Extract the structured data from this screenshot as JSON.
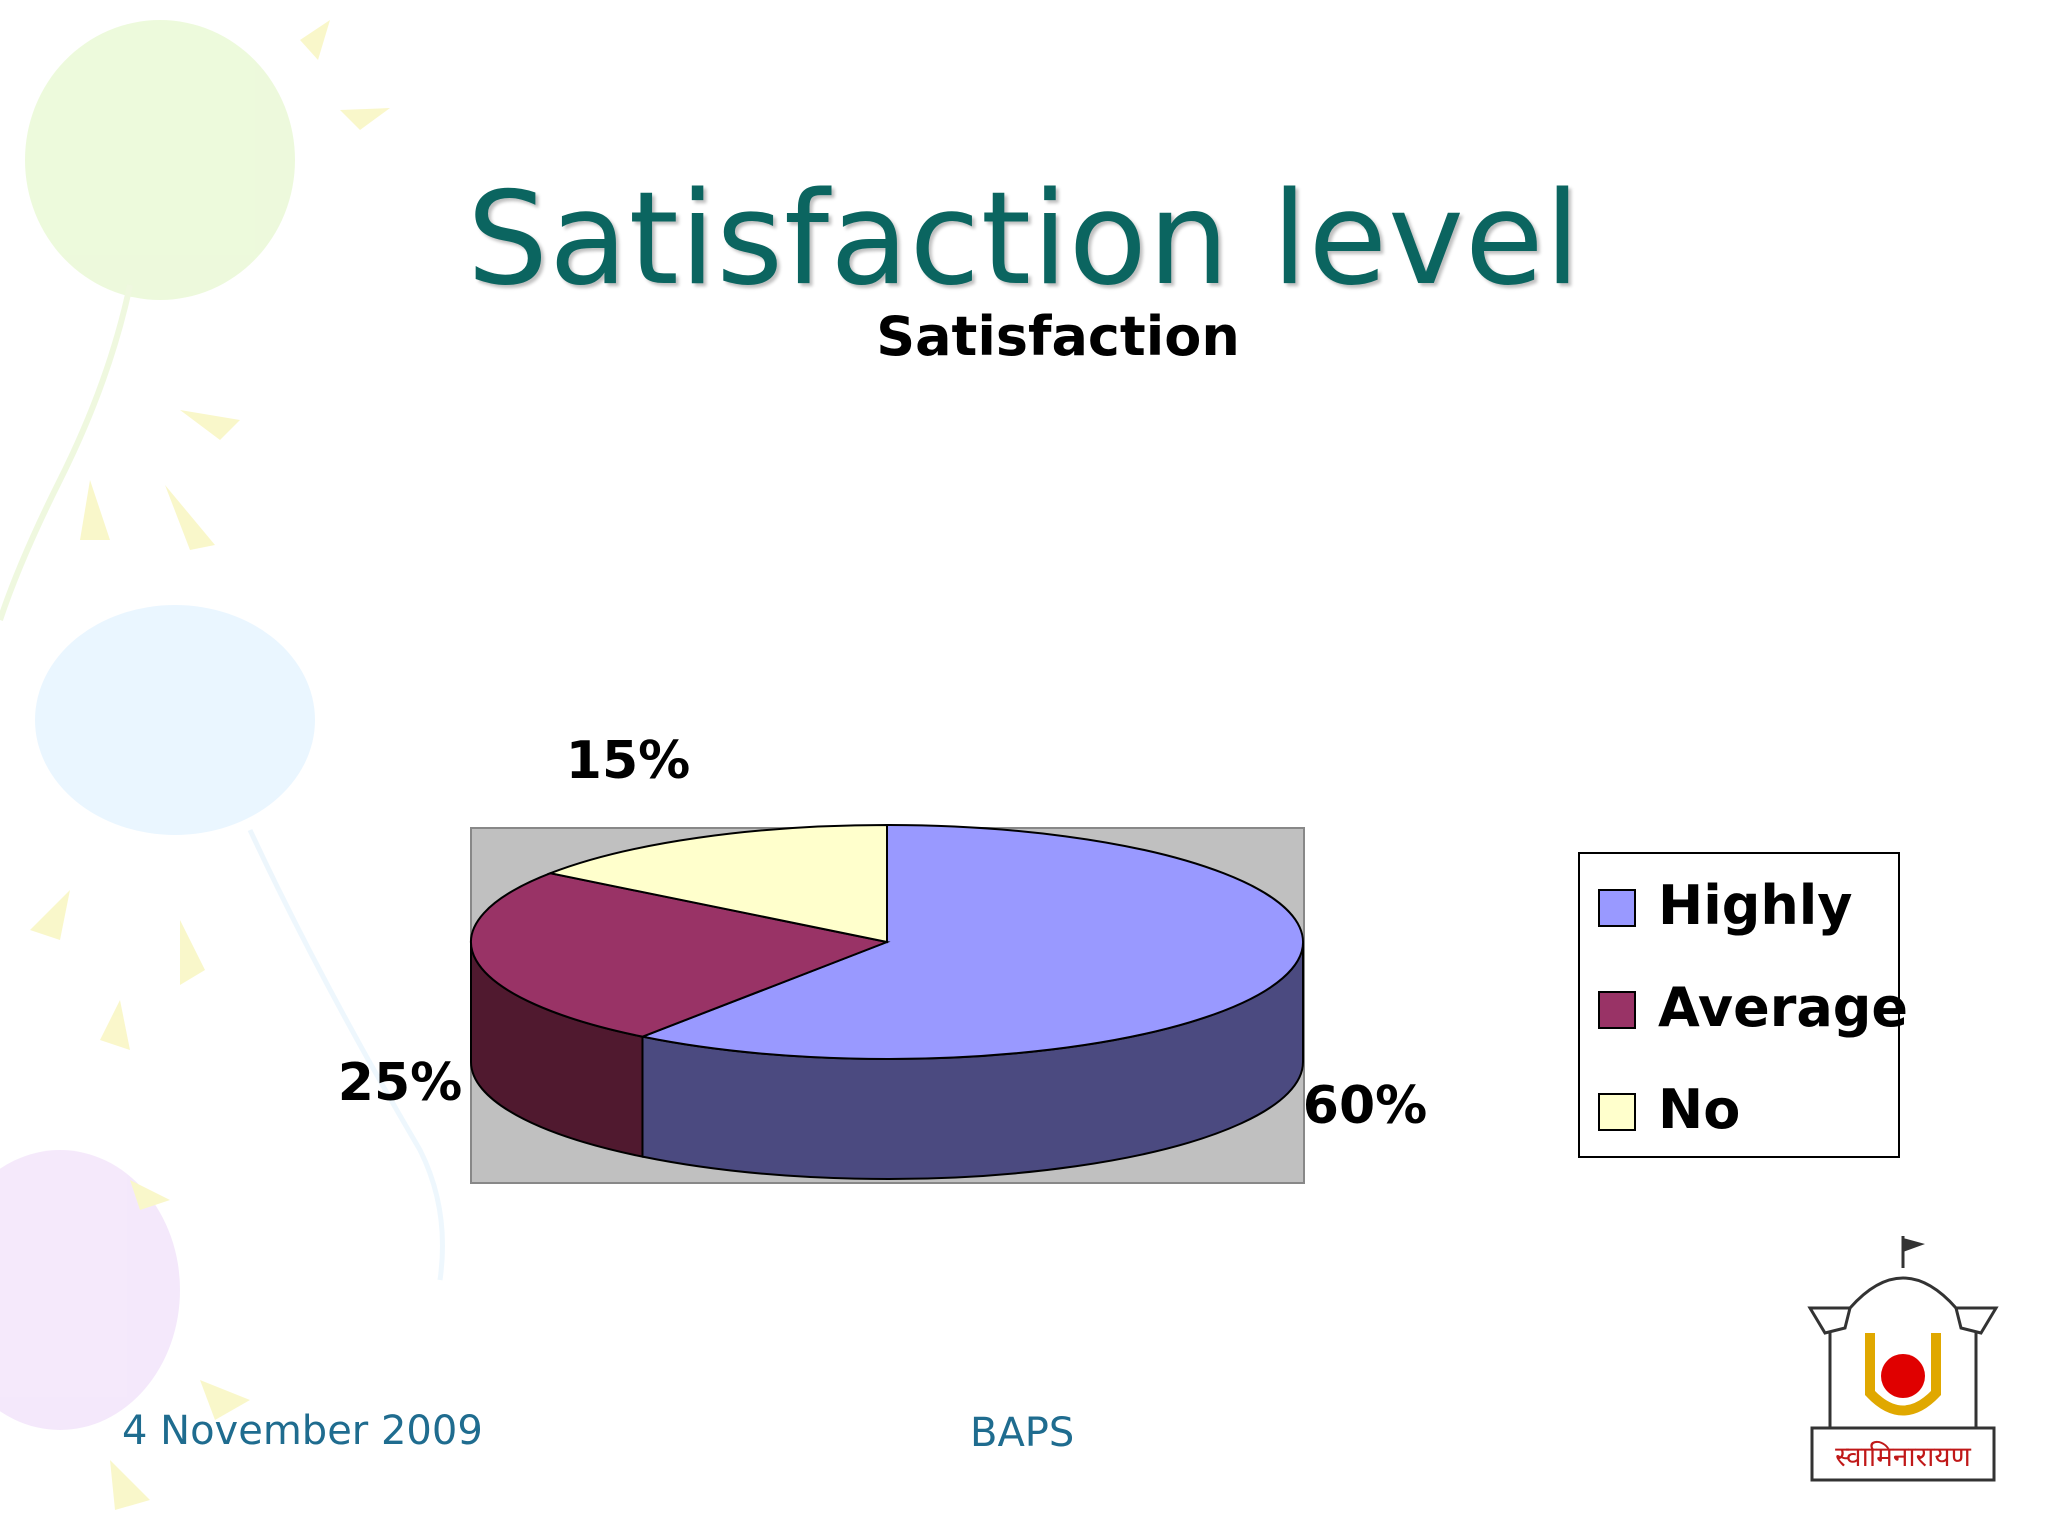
{
  "slide": {
    "title": "Satisfaction level",
    "footer_date": "4 November 2009",
    "footer_org": "BAPS"
  },
  "logo": {
    "text": "स्वामिनारायण"
  },
  "chart_data": {
    "type": "pie",
    "style": "3d",
    "title": "Satisfaction",
    "categories": [
      "Highly",
      "Average",
      "No"
    ],
    "values": [
      60,
      25,
      15
    ],
    "data_labels": [
      "60%",
      "25%",
      "15%"
    ],
    "colors": [
      "#9999ff",
      "#993366",
      "#ffffcc"
    ],
    "side_colors": [
      "#4b4a80",
      "#50192f",
      "#808066"
    ],
    "plot_background": "#c0c0c0",
    "legend_position": "right"
  }
}
